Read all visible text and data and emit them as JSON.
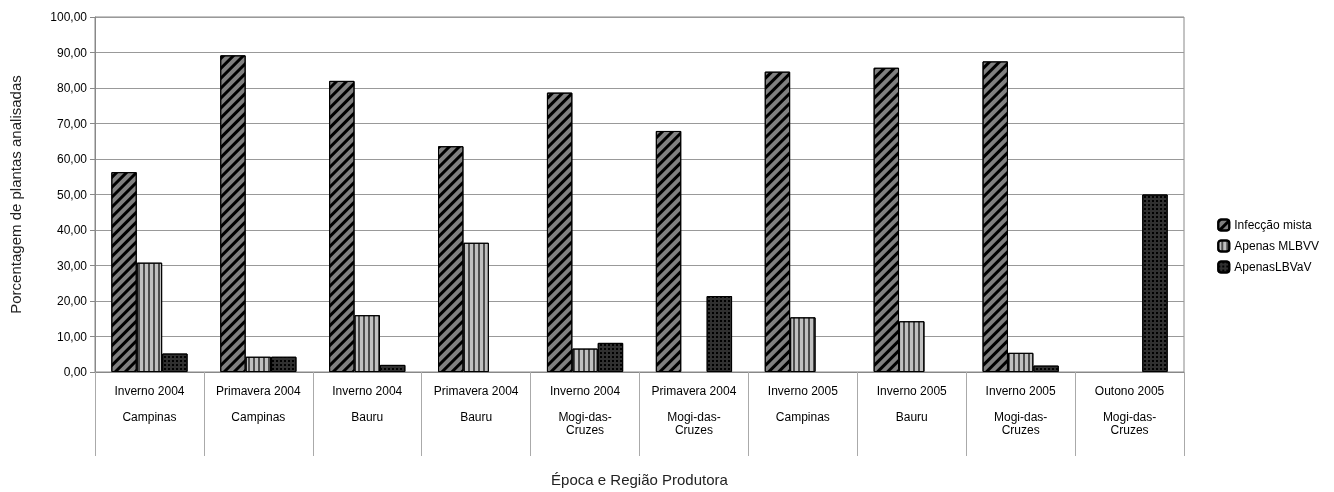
{
  "chart_data": {
    "type": "bar",
    "xlabel": "Época e Região Produtora",
    "ylabel": "Porcentagem de plantas analisadas",
    "categories": [
      "Inverno 2004\nCampinas",
      "Primavera 2004\nCampinas",
      "Inverno 2004\nBauru",
      "Primavera 2004\nBauru",
      "Inverno 2004\nMogi-das-Cruzes",
      "Primavera 2004\nMogi-das-Cruzes",
      "Inverno 2005\nCampinas",
      "Inverno 2005\nBauru",
      "Inverno 2005\nMogi-das-Cruzes",
      "Outono 2005\nMogi-das-Cruzes"
    ],
    "series": [
      {
        "name": "Infecção mista",
        "color": "#808080",
        "values": [
          56.3,
          89.2,
          82.0,
          63.6,
          78.7,
          67.9,
          84.6,
          85.7,
          87.5,
          0
        ]
      },
      {
        "name": "Apenas MLBVV",
        "color": "#c0c0c0",
        "values": [
          30.8,
          4.3,
          16.0,
          36.4,
          6.6,
          0,
          15.4,
          14.3,
          5.4,
          0
        ]
      },
      {
        "name": "ApenasLBVaV",
        "color": "#303030",
        "values": [
          5.2,
          4.3,
          2.0,
          0,
          8.2,
          21.4,
          0,
          0,
          1.8,
          50.0
        ]
      }
    ],
    "ylim": [
      0,
      100
    ],
    "yticks": [
      {
        "value": 0,
        "label": "0,00"
      },
      {
        "value": 10,
        "label": "10,00"
      },
      {
        "value": 20,
        "label": "20,00"
      },
      {
        "value": 30,
        "label": "30,00"
      },
      {
        "value": 40,
        "label": "40,00"
      },
      {
        "value": 50,
        "label": "50,00"
      },
      {
        "value": 60,
        "label": "60,00"
      },
      {
        "value": 70,
        "label": "70,00"
      },
      {
        "value": 80,
        "label": "80,00"
      },
      {
        "value": 90,
        "label": "90,00"
      },
      {
        "value": 100,
        "label": "100,00"
      }
    ],
    "grid": "y",
    "legend": "right"
  }
}
